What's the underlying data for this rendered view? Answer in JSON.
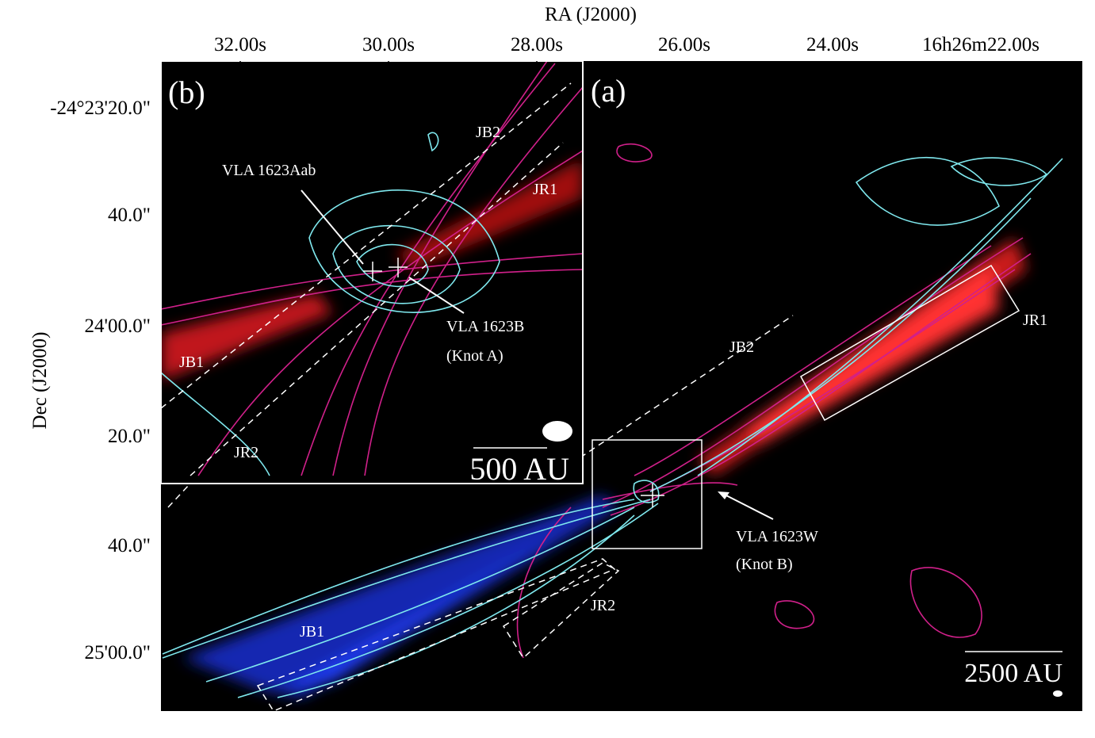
{
  "figure": {
    "x_axis_title": "RA (J2000)",
    "y_axis_title": "Dec (J2000)",
    "x_ticks": [
      "32.00s",
      "30.00s",
      "28.00s",
      "26.00s",
      "24.00s",
      "16h26m22.00s"
    ],
    "y_ticks": [
      "-24°23'20.0\"",
      "40.0\"",
      "24'00.0\"",
      "20.0\"",
      "40.0\"",
      "25'00.0\""
    ],
    "panel_a": {
      "label": "(a)",
      "jb2": "JB2",
      "jr1": "JR1",
      "jr2": "JR2",
      "jb1": "JB1",
      "source": "VLA 1623W",
      "source_note": "(Knot B)",
      "scale": "2500 AU"
    },
    "panel_b": {
      "label": "(b)",
      "jb2": "JB2",
      "jr1": "JR1",
      "jr2": "JR2",
      "jb1": "JB1",
      "source1": "VLA 1623Aab",
      "source2": "VLA 1623B",
      "source2_note": "(Knot A)",
      "scale": "500 AU"
    }
  }
}
